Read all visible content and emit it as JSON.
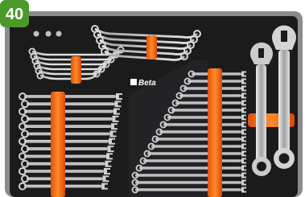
{
  "badge": {
    "text": "40"
  },
  "logo": {
    "text": "Beta"
  }
}
